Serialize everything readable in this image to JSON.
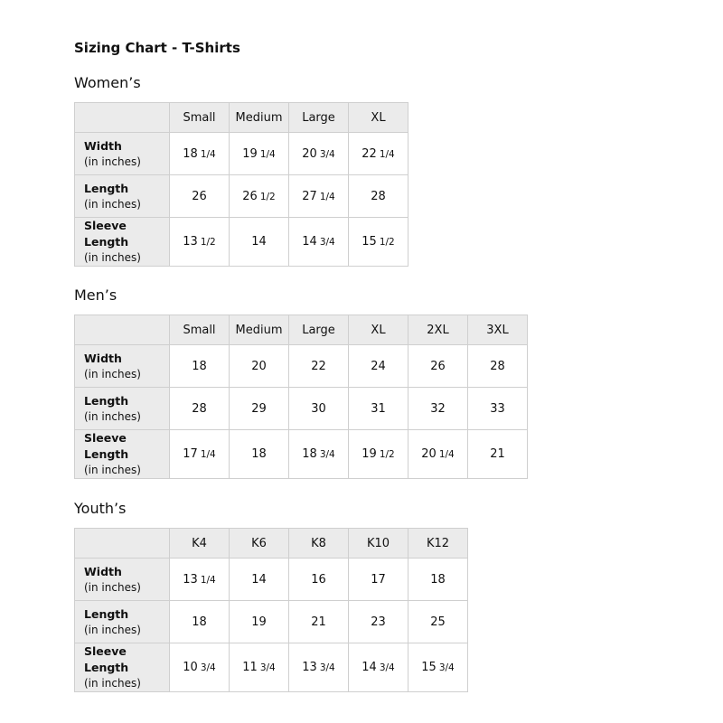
{
  "title": "Sizing Chart - T-Shirts",
  "unit": "(in inches)",
  "sections": [
    {
      "name": "Women’s",
      "sizes": [
        "Small",
        "Medium",
        "Large",
        "XL"
      ],
      "rows": [
        {
          "label": "Width",
          "values": [
            [
              "18",
              "1/4"
            ],
            [
              "19",
              "1/4"
            ],
            [
              "20",
              "3/4"
            ],
            [
              "22",
              "1/4"
            ]
          ]
        },
        {
          "label": "Length",
          "values": [
            [
              "26",
              ""
            ],
            [
              "26",
              "1/2"
            ],
            [
              "27",
              "1/4"
            ],
            [
              "28",
              ""
            ]
          ]
        },
        {
          "label": "Sleeve Length",
          "values": [
            [
              "13",
              "1/2"
            ],
            [
              "14",
              ""
            ],
            [
              "14",
              "3/4"
            ],
            [
              "15",
              "1/2"
            ]
          ]
        }
      ]
    },
    {
      "name": "Men’s",
      "sizes": [
        "Small",
        "Medium",
        "Large",
        "XL",
        "2XL",
        "3XL"
      ],
      "rows": [
        {
          "label": "Width",
          "values": [
            [
              "18",
              ""
            ],
            [
              "20",
              ""
            ],
            [
              "22",
              ""
            ],
            [
              "24",
              ""
            ],
            [
              "26",
              ""
            ],
            [
              "28",
              ""
            ]
          ]
        },
        {
          "label": "Length",
          "values": [
            [
              "28",
              ""
            ],
            [
              "29",
              ""
            ],
            [
              "30",
              ""
            ],
            [
              "31",
              ""
            ],
            [
              "32",
              ""
            ],
            [
              "33",
              ""
            ]
          ]
        },
        {
          "label": "Sleeve Length",
          "values": [
            [
              "17",
              "1/4"
            ],
            [
              "18",
              ""
            ],
            [
              "18",
              "3/4"
            ],
            [
              "19",
              "1/2"
            ],
            [
              "20",
              "1/4"
            ],
            [
              "21",
              ""
            ]
          ]
        }
      ]
    },
    {
      "name": "Youth’s",
      "sizes": [
        "K4",
        "K6",
        "K8",
        "K10",
        "K12"
      ],
      "rows": [
        {
          "label": "Width",
          "values": [
            [
              "13",
              "1/4"
            ],
            [
              "14",
              ""
            ],
            [
              "16",
              ""
            ],
            [
              "17",
              ""
            ],
            [
              "18",
              ""
            ]
          ]
        },
        {
          "label": "Length",
          "values": [
            [
              "18",
              ""
            ],
            [
              "19",
              ""
            ],
            [
              "21",
              ""
            ],
            [
              "23",
              ""
            ],
            [
              "25",
              ""
            ]
          ]
        },
        {
          "label": "Sleeve Length",
          "values": [
            [
              "10",
              "3/4"
            ],
            [
              "11",
              "3/4"
            ],
            [
              "13",
              "3/4"
            ],
            [
              "14",
              "3/4"
            ],
            [
              "15",
              "3/4"
            ]
          ]
        }
      ]
    }
  ]
}
